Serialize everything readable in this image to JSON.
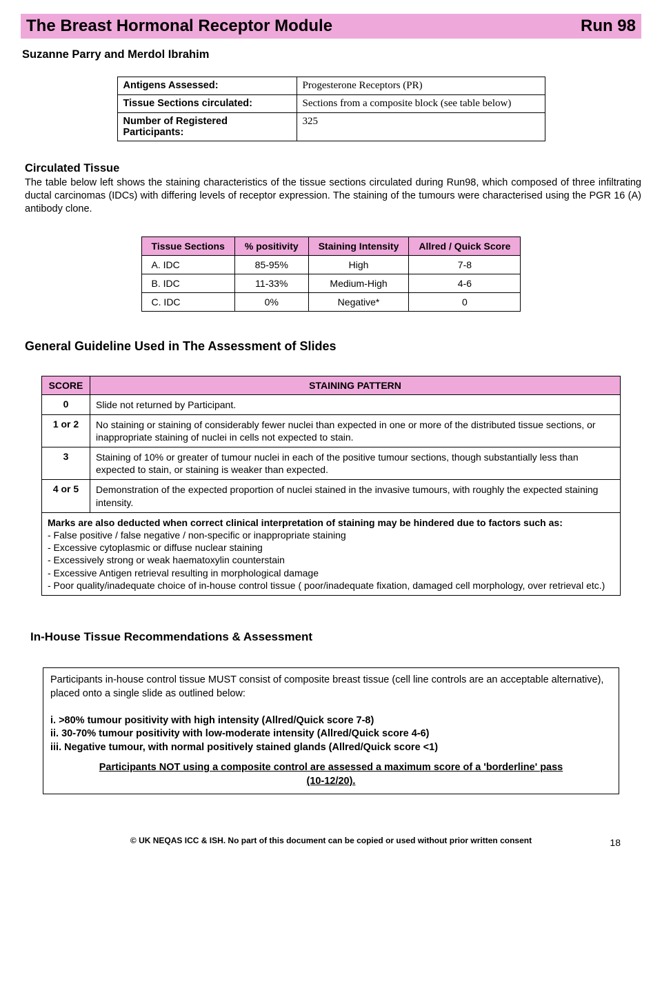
{
  "header": {
    "title": "The Breast Hormonal Receptor Module",
    "run": "Run 98"
  },
  "authors": "Suzanne Parry and Merdol Ibrahim",
  "info": {
    "r1l": "Antigens Assessed:",
    "r1v": "Progesterone Receptors (PR)",
    "r2l": "Tissue Sections circulated:",
    "r2v": "Sections from a composite block (see table below)",
    "r3l": "Number of Registered Participants:",
    "r3v": "325"
  },
  "circulated": {
    "heading": "Circulated Tissue",
    "para": "The table below left shows the staining characteristics of the tissue sections circulated during Run98, which composed of three infiltrating ductal carcinomas (IDCs) with differing levels of receptor expression. The staining of the tumours were characterised using the PGR 16 (A) antibody clone."
  },
  "tissue": {
    "headers": [
      "Tissue Sections",
      "% positivity",
      "Staining Intensity",
      "Allred / Quick Score"
    ],
    "rows": [
      [
        "A. IDC",
        "85-95%",
        "High",
        "7-8"
      ],
      [
        "B. IDC",
        "11-33%",
        "Medium-High",
        "4-6"
      ],
      [
        "C. IDC",
        "0%",
        "Negative*",
        "0"
      ]
    ]
  },
  "guideline_heading": "General Guideline Used in The Assessment of Slides",
  "score": {
    "h1": "SCORE",
    "h2": "STAINING PATTERN",
    "rows": [
      {
        "s": "0",
        "p": "Slide not returned by Participant."
      },
      {
        "s": "1 or 2",
        "p": "No staining or staining of considerably fewer nuclei than expected in one or more of the distributed tissue sections, or inappropriate staining of nuclei in cells not expected to stain."
      },
      {
        "s": "3",
        "p": "Staining of 10% or greater of tumour nuclei in each of the positive tumour sections, though substantially less than expected to stain, or staining is weaker than expected."
      },
      {
        "s": "4 or 5",
        "p": "Demonstration of the expected proportion of nuclei stained in the invasive tumours, with roughly the expected staining intensity."
      }
    ],
    "note_lead": "Marks are also deducted when correct clinical interpretation of staining may be hindered due to factors such as:",
    "note_items": [
      "- False positive / false negative / non-specific or inappropriate staining",
      "- Excessive cytoplasmic or diffuse nuclear staining",
      "- Excessively strong or weak haematoxylin counterstain",
      "- Excessive Antigen retrieval resulting in morphological damage",
      "- Poor quality/inadequate choice of in-house control tissue ( poor/inadequate fixation, damaged cell morphology, over retrieval etc.)"
    ]
  },
  "inhouse": {
    "heading": "In-House Tissue Recommendations & Assessment",
    "intro": "Participants in-house control tissue MUST consist of composite breast tissue (cell line controls are an acceptable alternative), placed onto a single slide as outlined below:",
    "i1": "i. >80% tumour positivity with high intensity (Allred/Quick score 7-8)",
    "i2": "ii. 30-70% tumour positivity with low-moderate intensity (Allred/Quick score 4-6)",
    "i3": "iii. Negative tumour, with normal positively stained glands (Allred/Quick score <1)",
    "warn1": "Participants NOT using a composite control are assessed a maximum score of  a 'borderline' pass",
    "warn2": "(10-12/20)."
  },
  "footer": {
    "copyright": "© UK NEQAS ICC & ISH. No part of this document can be copied or used without prior written consent",
    "page": "18"
  },
  "colors": {
    "pink": "#eea9da"
  }
}
